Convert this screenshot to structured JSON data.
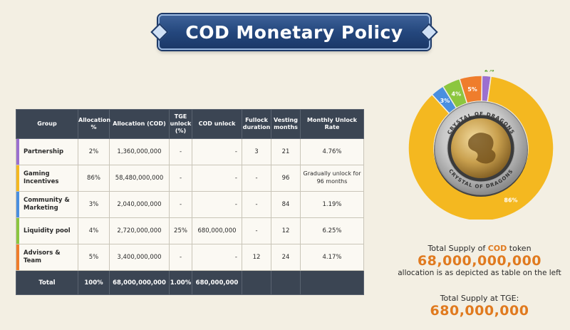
{
  "title": "COD Monetary Policy",
  "table": {
    "headers": [
      "Group",
      "Allocation %",
      "Allocation (COD)",
      "TGE unlock (%)",
      "COD unlock",
      "Fullock duration",
      "Vesting months",
      "Monthly Unlock Rate"
    ],
    "rows": [
      {
        "group": "Partnership",
        "color": "#9b6fcf",
        "alloc_pct": "2%",
        "alloc_cod": "1,360,000,000",
        "tge": "-",
        "cod_unlock": "-",
        "fullock": "3",
        "vesting": "21",
        "monthly": "4.76%"
      },
      {
        "group": "Gaming Incentives",
        "color": "#f4b820",
        "alloc_pct": "86%",
        "alloc_cod": "58,480,000,000",
        "tge": "-",
        "cod_unlock": "-",
        "fullock": "-",
        "vesting": "96",
        "monthly": "Gradually unlock for 96 months"
      },
      {
        "group": "Community & Marketing",
        "color": "#4a8fe0",
        "alloc_pct": "3%",
        "alloc_cod": "2,040,000,000",
        "tge": "-",
        "cod_unlock": "-",
        "fullock": "-",
        "vesting": "84",
        "monthly": "1.19%"
      },
      {
        "group": "Liquidity pool",
        "color": "#8cc63f",
        "alloc_pct": "4%",
        "alloc_cod": "2,720,000,000",
        "tge": "25%",
        "cod_unlock": "680,000,000",
        "fullock": "-",
        "vesting": "12",
        "monthly": "6.25%"
      },
      {
        "group": "Advisors & Team",
        "color": "#ef7d2c",
        "alloc_pct": "5%",
        "alloc_cod": "3,400,000,000",
        "tge": "-",
        "cod_unlock": "-",
        "fullock": "12",
        "vesting": "24",
        "monthly": "4.17%"
      }
    ],
    "total": {
      "label": "Total",
      "alloc_pct": "100%",
      "alloc_cod": "68,000,000,000",
      "tge": "1.00%",
      "cod_unlock": "680,000,000",
      "fullock": "",
      "vesting": "",
      "monthly": ""
    }
  },
  "chart_data": {
    "type": "pie",
    "categories": [
      "Partnership",
      "Gaming Incentives",
      "Community & Marketing",
      "Liquidity pool",
      "Advisors & Team"
    ],
    "values": [
      2,
      86,
      3,
      4,
      5
    ],
    "labels": [
      "2%",
      "86%",
      "3%",
      "4%",
      "5%"
    ],
    "colors": [
      "#9b6fcf",
      "#f4b820",
      "#4a8fe0",
      "#8cc63f",
      "#ef7d2c"
    ],
    "label_colors": [
      "#5aa02c",
      "#ffffff",
      "#ffffff",
      "#ffffff",
      "#ffffff"
    ],
    "coin_text_top": "CRYSTAL OF DRAGONS",
    "coin_text_bottom": "CRYSTAL OF DRAGONS"
  },
  "supply": {
    "label_prefix": "Total Supply of ",
    "label_token": "COD",
    "label_suffix": " token",
    "value": "68,000,000,000",
    "note": "allocation is as depicted as table on the left",
    "tge_label": "Total Supply at TGE:",
    "tge_value": "680,000,000"
  }
}
